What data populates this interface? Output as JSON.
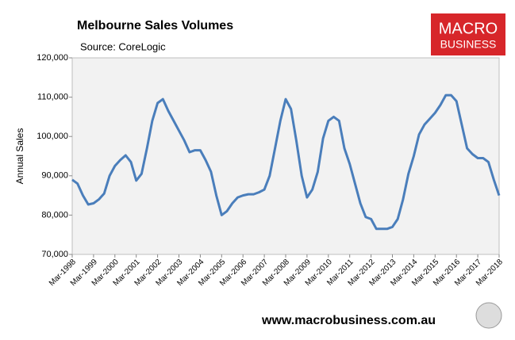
{
  "chart_data": {
    "type": "line",
    "title": "Melbourne Sales Volumes",
    "subtitle": "Source: CoreLogic",
    "y_label": "Annual Sales",
    "categories": [
      "Mar-1998",
      null,
      null,
      null,
      "Mar-1999",
      null,
      null,
      null,
      "Mar-2000",
      null,
      null,
      null,
      "Mar-2001",
      null,
      null,
      null,
      "Mar-2002",
      null,
      null,
      null,
      "Mar-2003",
      null,
      null,
      null,
      "Mar-2004",
      null,
      null,
      null,
      "Mar-2005",
      null,
      null,
      null,
      "Mar-2006",
      null,
      null,
      null,
      "Mar-2007",
      null,
      null,
      null,
      "Mar-2008",
      null,
      null,
      null,
      "Mar-2009",
      null,
      null,
      null,
      "Mar-2010",
      null,
      null,
      null,
      "Mar-2011",
      null,
      null,
      null,
      "Mar-2012",
      null,
      null,
      null,
      "Mar-2013",
      null,
      null,
      null,
      "Mar-2014",
      null,
      null,
      null,
      "Mar-2015",
      null,
      null,
      null,
      "Mar-2016",
      null,
      null,
      null,
      "Mar-2017",
      null,
      null,
      null,
      "Mar-2018"
    ],
    "series": [
      {
        "name": "Annual Sales",
        "color": "#4a7ebb",
        "values": [
          89000,
          88000,
          85000,
          82700,
          83000,
          84000,
          85500,
          90000,
          92500,
          94000,
          95200,
          93500,
          88800,
          90500,
          97000,
          104000,
          108500,
          109500,
          106500,
          104000,
          101500,
          99000,
          96000,
          96500,
          96500,
          94000,
          91000,
          85000,
          80000,
          81000,
          83000,
          84500,
          85000,
          85300,
          85300,
          85800,
          86500,
          90000,
          97000,
          104000,
          109500,
          107000,
          99000,
          90000,
          84500,
          86500,
          91000,
          99500,
          104000,
          105000,
          104000,
          97000,
          93000,
          88000,
          83000,
          79500,
          79000,
          76500,
          76500,
          76500,
          77000,
          79000,
          84000,
          90500,
          95000,
          100500,
          103000,
          104500,
          106000,
          108000,
          110500,
          110500,
          109000,
          103000,
          97000,
          95500,
          94500,
          94500,
          93500,
          89000,
          85000
        ]
      }
    ],
    "ylim": [
      70000,
      120000
    ],
    "yticks": [
      {
        "value": 70000,
        "label": "70,000"
      },
      {
        "value": 80000,
        "label": "80,000"
      },
      {
        "value": 90000,
        "label": "90,000"
      },
      {
        "value": 100000,
        "label": "100,000"
      },
      {
        "value": 110000,
        "label": "110,000"
      },
      {
        "value": 120000,
        "label": "120,000"
      }
    ],
    "grid": false
  },
  "logo": {
    "line1": "MACRO",
    "line2": "BUSINESS"
  },
  "footer": "www.macrobusiness.com.au"
}
